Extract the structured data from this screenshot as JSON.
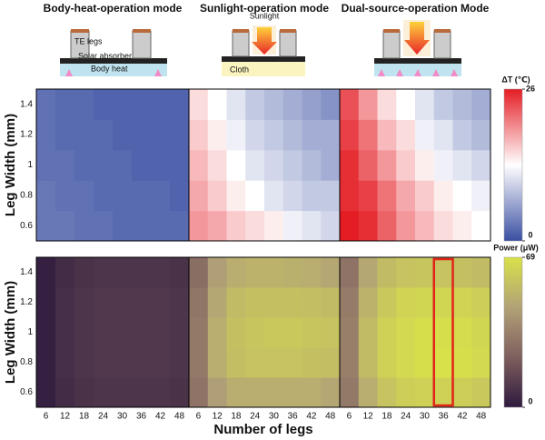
{
  "illustrations": [
    {
      "labels": [
        "TE legs",
        "Solar absorber",
        "Body heat"
      ]
    },
    {
      "labels": [
        "Sunlight",
        "Cloth"
      ]
    },
    {
      "labels": []
    }
  ],
  "chart_data": [
    {
      "type": "heatmap",
      "y_label": "Leg Width (mm)",
      "x": [
        6,
        12,
        18,
        24,
        30,
        36,
        42,
        48
      ],
      "y": [
        0.6,
        0.8,
        1,
        1.2,
        1.4
      ],
      "colorbar_label": "ΔT (℃)",
      "clim": [
        0,
        26
      ],
      "cticks": [
        0,
        26
      ],
      "colormap": [
        "#3a4fa2",
        "#ffffff",
        "#e41d24"
      ],
      "panels": [
        {
          "title": "Body-heat-operation mode",
          "values": [
            [
              3,
              3,
              2.5,
              2.5,
              2,
              2,
              2,
              2
            ],
            [
              3,
              2.5,
              2.5,
              2,
              2,
              2,
              2,
              1.5
            ],
            [
              2.5,
              2.5,
              2,
              2,
              2,
              1.5,
              1.5,
              1.5
            ],
            [
              2.5,
              2,
              2,
              2,
              1.5,
              1.5,
              1.5,
              1.5
            ],
            [
              2.5,
              2,
              2,
              1.5,
              1.5,
              1.5,
              1.5,
              1.5
            ]
          ]
        },
        {
          "title": "Sunlight-operation mode",
          "values": [
            [
              19,
              18,
              16,
              15,
              14,
              12,
              11,
              10
            ],
            [
              18,
              16,
              14,
              13,
              11,
              10,
              9,
              9
            ],
            [
              17,
              15,
              13,
              11,
              10,
              9,
              8,
              7
            ],
            [
              16,
              14,
              12,
              10,
              9,
              8,
              7,
              7
            ],
            [
              15,
              13,
              11,
              9,
              8,
              7,
              6,
              5
            ]
          ]
        },
        {
          "title": "Dual-source-operation Mode",
          "values": [
            [
              26,
              25,
              22,
              19,
              17,
              15,
              14,
              13
            ],
            [
              25,
              24,
              21,
              18,
              16,
              14,
              13,
              12
            ],
            [
              25,
              22,
              19,
              16,
              14,
              12,
              11,
              10
            ],
            [
              24,
              21,
              17,
              15,
              12,
              11,
              9,
              8
            ],
            [
              23,
              19,
              15,
              13,
              11,
              9,
              8,
              7
            ]
          ]
        }
      ]
    },
    {
      "type": "heatmap",
      "y_label": "Leg Width (mm)",
      "x_label": "Number of legs",
      "x": [
        6,
        12,
        18,
        24,
        30,
        36,
        42,
        48
      ],
      "y": [
        0.6,
        0.8,
        1,
        1.2,
        1.4
      ],
      "colorbar_label": "Power (μW)",
      "clim": [
        0,
        69
      ],
      "cticks": [
        0,
        69
      ],
      "colormap": [
        "#2e1a3e",
        "#7e5f5e",
        "#b2a277",
        "#d8e14a"
      ],
      "panels": [
        {
          "values": [
            [
              2,
              6,
              8,
              9,
              9,
              9,
              9,
              8
            ],
            [
              2,
              7,
              9,
              10,
              10,
              10,
              10,
              9
            ],
            [
              2,
              7,
              9,
              10,
              10,
              10,
              10,
              9
            ],
            [
              2,
              7,
              9,
              10,
              10,
              10,
              10,
              9
            ],
            [
              2,
              6,
              8,
              9,
              9,
              9,
              9,
              8
            ]
          ]
        },
        {
          "values": [
            [
              30,
              45,
              50,
              50,
              50,
              50,
              50,
              48
            ],
            [
              32,
              50,
              56,
              58,
              58,
              58,
              57,
              56
            ],
            [
              32,
              50,
              57,
              59,
              60,
              60,
              59,
              58
            ],
            [
              31,
              48,
              55,
              57,
              57,
              57,
              56,
              55
            ],
            [
              28,
              45,
              50,
              52,
              52,
              51,
              50,
              48
            ]
          ]
        },
        {
          "highlight_x": 36,
          "values": [
            [
              32,
              50,
              58,
              62,
              63,
              63,
              62,
              60
            ],
            [
              34,
              55,
              63,
              66,
              68,
              69,
              68,
              66
            ],
            [
              34,
              55,
              63,
              66,
              68,
              68,
              67,
              65
            ],
            [
              33,
              52,
              60,
              64,
              65,
              65,
              64,
              62
            ],
            [
              30,
              48,
              55,
              58,
              59,
              58,
              57,
              55
            ]
          ]
        }
      ]
    }
  ]
}
